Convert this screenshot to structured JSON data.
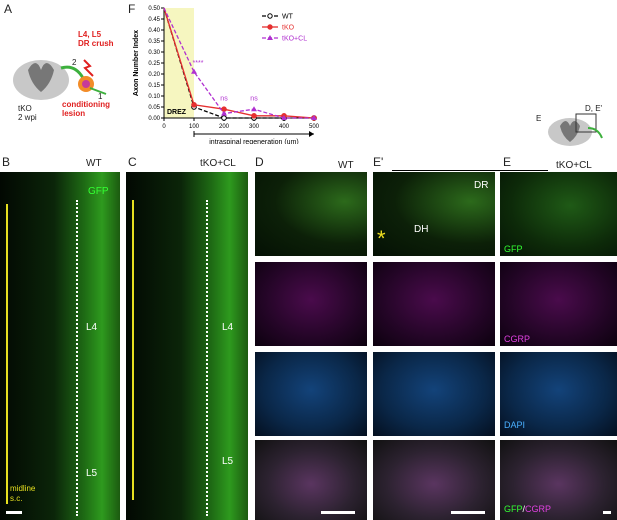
{
  "panels": {
    "A": "A",
    "F": "F",
    "B": "B",
    "C": "C",
    "D": "D",
    "Eprime": "E'",
    "E": "E"
  },
  "schematic_a": {
    "crush": "L4, L5\nDR crush",
    "num2": "2",
    "num1": "1",
    "conditioning": "conditioning\nlesion",
    "genotype": "tKO\n2 wpi"
  },
  "schematic_e": {
    "label_e": "E",
    "label_de": "D, E'"
  },
  "images": {
    "b_title": "WT",
    "b_gfp": "GFP",
    "b_l4": "L4",
    "b_l5": "L5",
    "midline": "midline",
    "sc": "s.c.",
    "c_title": "tKO+CL",
    "c_l4": "L4",
    "c_l5": "L5",
    "d_title": "WT",
    "ep_dr": "DR",
    "ep_dh": "DH",
    "e_title": "tKO+CL",
    "gfp": "GFP",
    "cgrp": "CGRP",
    "dapi": "DAPI",
    "merge_gfp": "GFP",
    "merge_slash": "/",
    "merge_cgrp": "CGRP"
  },
  "colors": {
    "wt": "#000000",
    "tko": "#e53030",
    "tkocl": "#b030d0",
    "drez_fill": "#f6f6c0"
  },
  "chart_data": {
    "type": "line",
    "ylabel": "Axon Number Index",
    "xlabel": "intraspinal regeneration (um)",
    "region_label": "DREZ",
    "x": [
      0,
      100,
      200,
      300,
      400,
      500
    ],
    "xlim": [
      0,
      500
    ],
    "ylim": [
      0,
      0.5
    ],
    "yticks": [
      0.0,
      0.05,
      0.1,
      0.15,
      0.2,
      0.25,
      0.3,
      0.35,
      0.4,
      0.45,
      0.5
    ],
    "xticks": [
      0,
      100,
      200,
      300,
      400,
      500
    ],
    "series": [
      {
        "name": "WT",
        "values": [
          0.5,
          0.05,
          0.0,
          0.0,
          0.0,
          0.0
        ]
      },
      {
        "name": "tKO",
        "values": [
          0.5,
          0.06,
          0.04,
          0.01,
          0.01,
          0.0
        ]
      },
      {
        "name": "tKO+CL",
        "values": [
          0.5,
          0.21,
          0.02,
          0.04,
          0.0,
          0.0
        ]
      }
    ],
    "annotations": [
      {
        "x": 100,
        "text": "****"
      },
      {
        "x": 200,
        "text": "ns"
      },
      {
        "x": 300,
        "text": "ns"
      }
    ],
    "legend_position": "top-right"
  }
}
